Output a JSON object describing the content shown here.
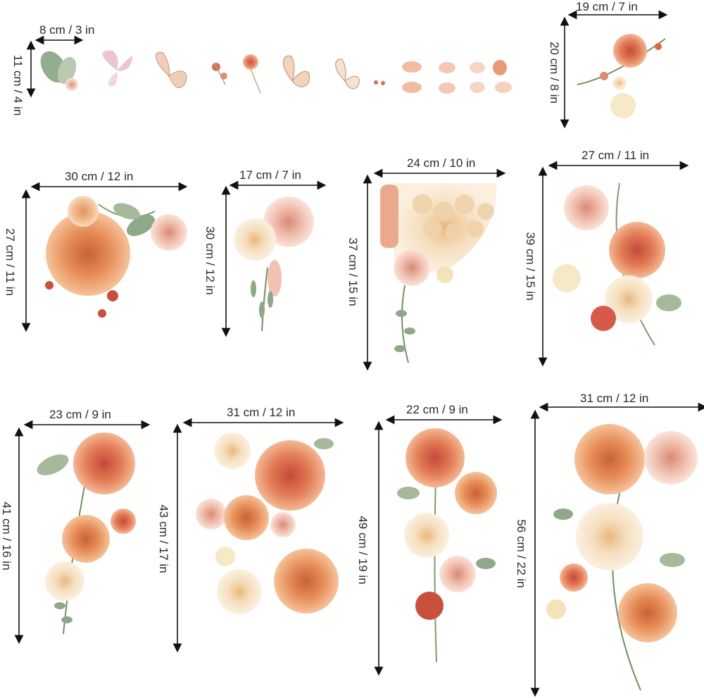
{
  "stickers": [
    {
      "width": "8 cm / 3 in",
      "height": "11 cm / 4 in"
    },
    {
      "width": "19 cm / 7 in",
      "height": "20 cm / 8 in"
    },
    {
      "width": "30 cm / 12 in",
      "height": "27 cm / 11 in"
    },
    {
      "width": "17 cm / 7 in",
      "height": "30 cm / 12 in"
    },
    {
      "width": "24 cm / 10 in",
      "height": "37 cm / 15 in"
    },
    {
      "width": "27 cm / 11 in",
      "height": "39 cm / 15 in"
    },
    {
      "width": "23 cm / 9 in",
      "height": "41 cm / 16 in"
    },
    {
      "width": "31 cm / 12 in",
      "height": "43 cm / 17 in"
    },
    {
      "width": "22 cm / 9 in",
      "height": "49 cm / 19 in"
    },
    {
      "width": "31 cm / 12 in",
      "height": "56 cm / 22 in"
    }
  ],
  "colors": {
    "coral": "#e0704a",
    "peach": "#f2b48c",
    "cream": "#f6e4c8",
    "blush": "#f0c4b4",
    "leaf": "#8fa88a",
    "rust": "#c9503a"
  }
}
